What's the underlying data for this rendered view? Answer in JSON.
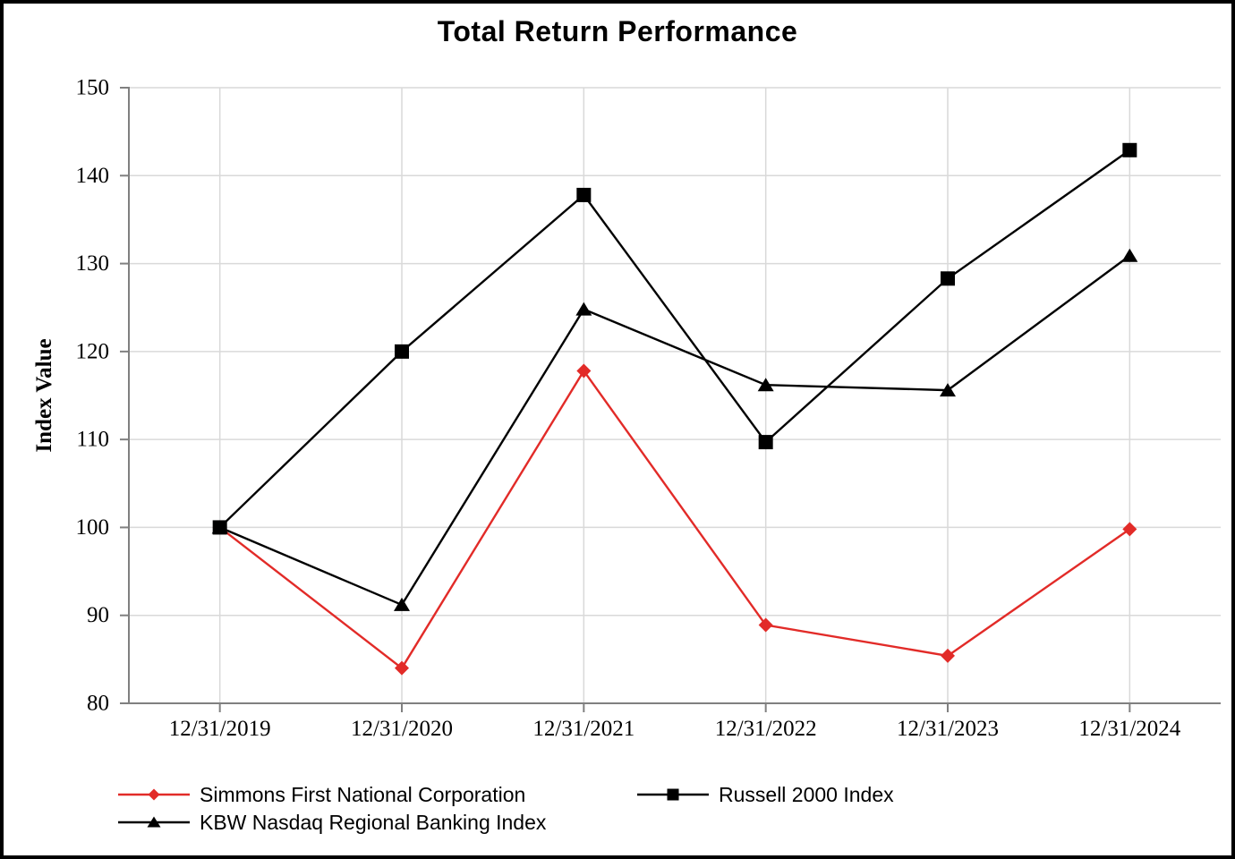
{
  "chart_data": {
    "type": "line",
    "title": "Total Return Performance",
    "xlabel": "",
    "ylabel": "Index Value",
    "ylim": [
      80,
      150
    ],
    "yticks": [
      80,
      90,
      100,
      110,
      120,
      130,
      140,
      150
    ],
    "grid": true,
    "legend_position": "bottom",
    "categories": [
      "12/31/2019",
      "12/31/2020",
      "12/31/2021",
      "12/31/2022",
      "12/31/2023",
      "12/31/2024"
    ],
    "series": [
      {
        "name": "Simmons First National Corporation",
        "marker": "diamond",
        "color": "#E22B28",
        "values": [
          100.0,
          84.0,
          117.8,
          88.9,
          85.4,
          99.8
        ]
      },
      {
        "name": "Russell 2000 Index",
        "marker": "square",
        "color": "#000000",
        "values": [
          100.0,
          120.0,
          137.8,
          109.7,
          128.3,
          142.9
        ]
      },
      {
        "name": "KBW Nasdaq Regional Banking Index",
        "marker": "triangle",
        "color": "#000000",
        "values": [
          100.0,
          91.2,
          124.8,
          116.2,
          115.6,
          130.9
        ]
      }
    ],
    "colors": {
      "background": "#FFFFFF",
      "border": "#000000",
      "gridline": "#D9D9D9",
      "axis": "#808080",
      "text": "#000000",
      "accent_red": "#E22B28"
    }
  }
}
